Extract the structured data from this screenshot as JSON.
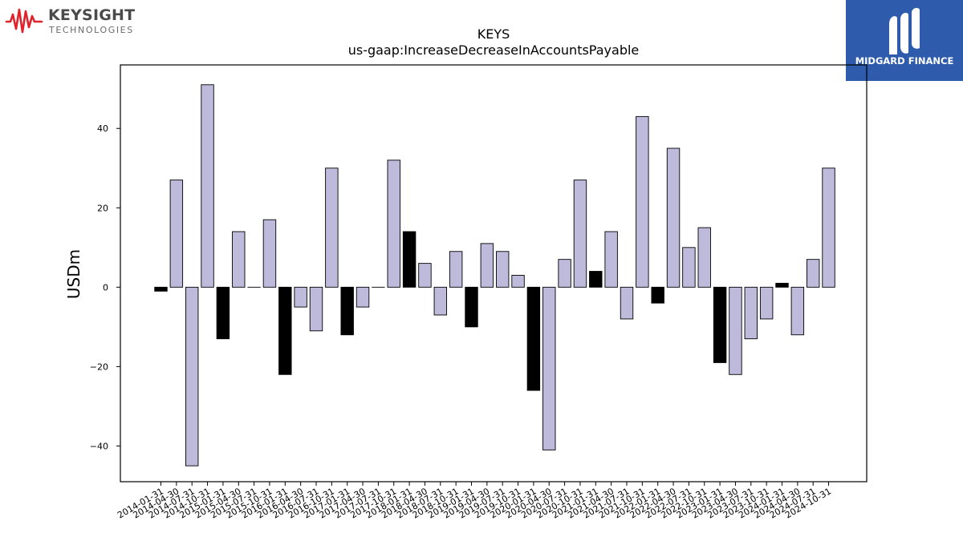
{
  "logos": {
    "left": {
      "brand": "KEYSIGHT",
      "sub": "TECHNOLOGIES",
      "color": "#e0232b"
    },
    "right": {
      "name": "MIDGARD FINANCE",
      "color": "#2e5bab"
    }
  },
  "chart_data": {
    "type": "bar",
    "title": "KEYS",
    "subtitle": "us-gaap:IncreaseDecreaseInAccountsPayable",
    "xlabel": "",
    "ylabel": "USDm",
    "ylim": [
      -49,
      56
    ],
    "yticks": [
      -40,
      -20,
      0,
      20,
      40
    ],
    "grid": false,
    "colors": {
      "default": "#bdbadb",
      "highlight": "#000000",
      "edge": "#000000"
    },
    "categories": [
      "2014-01-31",
      "2014-04-30",
      "2014-07-31",
      "2014-10-31",
      "2015-01-31",
      "2015-04-30",
      "2015-07-31",
      "2015-10-31",
      "2016-01-31",
      "2016-04-30",
      "2016-07-31",
      "2016-10-31",
      "2017-01-31",
      "2017-04-30",
      "2017-07-31",
      "2017-10-31",
      "2018-01-31",
      "2018-04-30",
      "2018-07-31",
      "2018-10-31",
      "2019-01-31",
      "2019-04-30",
      "2019-07-31",
      "2019-10-31",
      "2020-01-31",
      "2020-04-30",
      "2020-07-31",
      "2020-10-31",
      "2021-01-31",
      "2021-04-30",
      "2021-07-31",
      "2021-10-31",
      "2022-01-31",
      "2022-04-30",
      "2022-07-31",
      "2022-10-31",
      "2023-01-31",
      "2023-04-30",
      "2023-07-31",
      "2023-10-31",
      "2024-01-31",
      "2024-04-30",
      "2024-07-31",
      "2024-10-31"
    ],
    "values": [
      -1,
      27,
      -45,
      51,
      -13,
      14,
      0,
      17,
      -22,
      -5,
      -11,
      30,
      -12,
      -5,
      0,
      32,
      14,
      6,
      -7,
      9,
      -10,
      11,
      9,
      3,
      -26,
      -41,
      7,
      27,
      4,
      14,
      -8,
      43,
      -4,
      35,
      10,
      15,
      -19,
      -22,
      -13,
      -8,
      1,
      -12,
      7,
      30
    ],
    "highlighted": [
      true,
      false,
      false,
      false,
      true,
      false,
      false,
      false,
      true,
      false,
      false,
      false,
      true,
      false,
      false,
      false,
      true,
      false,
      false,
      false,
      true,
      false,
      false,
      false,
      true,
      false,
      false,
      false,
      true,
      false,
      false,
      false,
      true,
      false,
      false,
      false,
      true,
      false,
      false,
      false,
      true,
      false,
      false,
      false
    ]
  }
}
